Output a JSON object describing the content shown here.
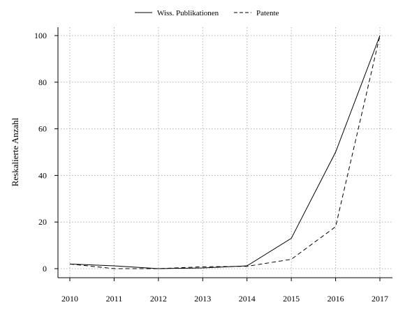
{
  "chart_data": {
    "type": "line",
    "title": "",
    "xlabel": "",
    "ylabel": "Reskalierte Anzahl",
    "x": [
      2010,
      2011,
      2012,
      2013,
      2014,
      2015,
      2016,
      2017
    ],
    "x_tick_labels": [
      "2010",
      "2011",
      "2012",
      "2013",
      "2014",
      "2015",
      "2016",
      "2017"
    ],
    "y_ticks": [
      0,
      20,
      40,
      60,
      80,
      100
    ],
    "y_tick_labels": [
      "0",
      "20",
      "40",
      "60",
      "80",
      "100"
    ],
    "xlim": [
      2010,
      2017
    ],
    "ylim": [
      -4,
      104
    ],
    "grid": true,
    "legend_position": "top-center",
    "series": [
      {
        "name": "Wiss. Publikationen",
        "line_style": "solid",
        "color": "#000000",
        "values": [
          2,
          1.2,
          0,
          0.3,
          1.2,
          13,
          50,
          100
        ]
      },
      {
        "name": "Patente",
        "line_style": "dashed",
        "color": "#000000",
        "values": [
          2,
          0,
          0,
          0.8,
          1,
          4,
          18,
          100
        ]
      }
    ]
  }
}
